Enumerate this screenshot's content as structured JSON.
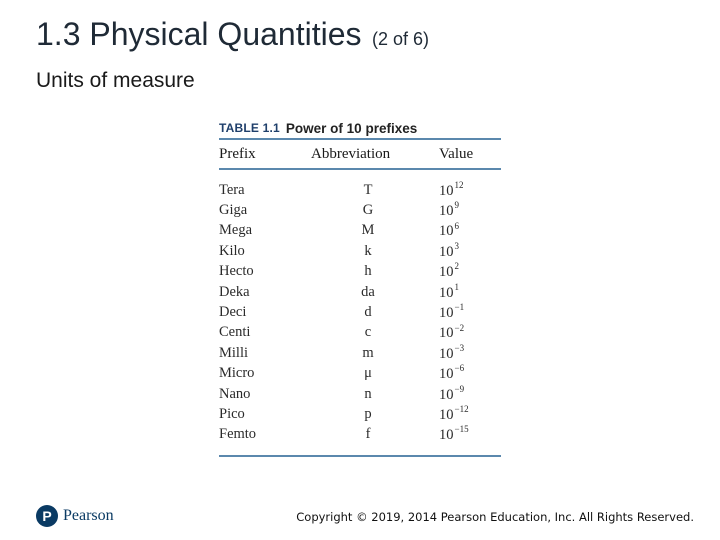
{
  "slide": {
    "title": "1.3 Physical Quantities",
    "title_suffix": "(2 of 6)",
    "subtitle": "Units of measure"
  },
  "table": {
    "label": "TABLE 1.1",
    "name": "Power of 10 prefixes",
    "headers": [
      "Prefix",
      "Abbreviation",
      "Value"
    ],
    "rows": [
      {
        "prefix": "Tera",
        "abbr": "T",
        "base": "10",
        "exp": "12"
      },
      {
        "prefix": "Giga",
        "abbr": "G",
        "base": "10",
        "exp": "9"
      },
      {
        "prefix": "Mega",
        "abbr": "M",
        "base": "10",
        "exp": "6"
      },
      {
        "prefix": "Kilo",
        "abbr": "k",
        "base": "10",
        "exp": "3"
      },
      {
        "prefix": "Hecto",
        "abbr": "h",
        "base": "10",
        "exp": "2"
      },
      {
        "prefix": "Deka",
        "abbr": "da",
        "base": "10",
        "exp": "1"
      },
      {
        "prefix": "Deci",
        "abbr": "d",
        "base": "10",
        "exp": "−1"
      },
      {
        "prefix": "Centi",
        "abbr": "c",
        "base": "10",
        "exp": "−2"
      },
      {
        "prefix": "Milli",
        "abbr": "m",
        "base": "10",
        "exp": "−3"
      },
      {
        "prefix": "Micro",
        "abbr": "μ",
        "base": "10",
        "exp": "−6"
      },
      {
        "prefix": "Nano",
        "abbr": "n",
        "base": "10",
        "exp": "−9"
      },
      {
        "prefix": "Pico",
        "abbr": "p",
        "base": "10",
        "exp": "−12"
      },
      {
        "prefix": "Femto",
        "abbr": "f",
        "base": "10",
        "exp": "−15"
      }
    ]
  },
  "footer": {
    "logo_mark": "P",
    "logo_text": "Pearson",
    "copyright": "Copyright © 2019, 2014 Pearson Education, Inc. All Rights Reserved."
  },
  "colors": {
    "table_rule": "#5b88ad",
    "brand": "#0a3a63"
  }
}
